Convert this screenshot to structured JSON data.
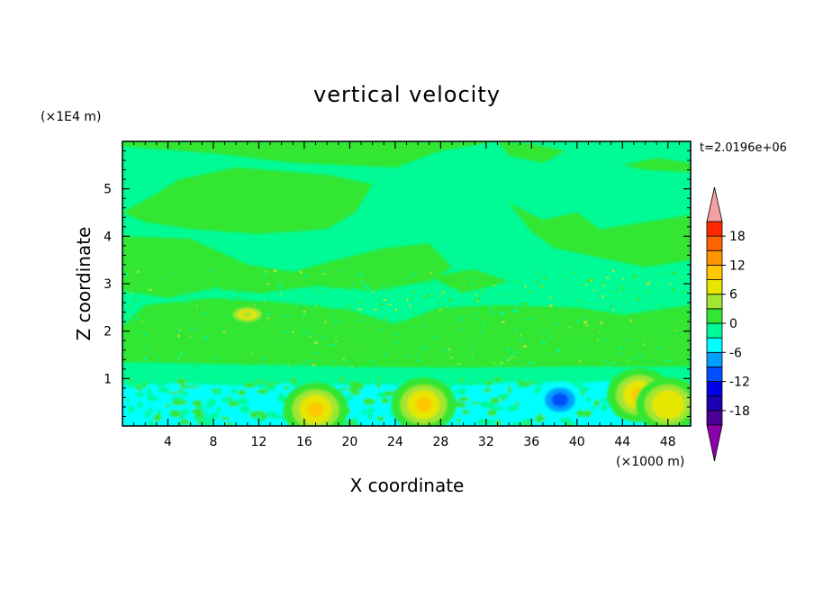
{
  "chart_data": {
    "type": "heatmap",
    "title": "vertical velocity",
    "xlabel": "X coordinate",
    "ylabel": "Z coordinate",
    "x_unit_label": "(×1000 m)",
    "y_unit_label": "(×1E4 m)",
    "time_label": "t=2.0196e+06",
    "xlim": [
      0,
      50
    ],
    "ylim": [
      0,
      6
    ],
    "x_ticks": [
      "4",
      "8",
      "12",
      "16",
      "20",
      "24",
      "28",
      "32",
      "36",
      "40",
      "44",
      "48"
    ],
    "y_ticks": [
      "1",
      "2",
      "3",
      "4",
      "5"
    ],
    "grid": false,
    "colorbar": {
      "min": -21,
      "max": 21,
      "step": 3,
      "ticks": [
        "18",
        "12",
        "6",
        "0",
        "-6",
        "-12",
        "-18"
      ],
      "extend": "both",
      "levels": [
        {
          "from": -21,
          "to": -18,
          "color": "#4b0096"
        },
        {
          "from": -18,
          "to": -15,
          "color": "#1e00b4"
        },
        {
          "from": -15,
          "to": -12,
          "color": "#0000e6"
        },
        {
          "from": -12,
          "to": -9,
          "color": "#0050ff"
        },
        {
          "from": -9,
          "to": -6,
          "color": "#00a0ff"
        },
        {
          "from": -6,
          "to": -3,
          "color": "#00ffff"
        },
        {
          "from": -3,
          "to": 0,
          "color": "#00fa96"
        },
        {
          "from": 0,
          "to": 3,
          "color": "#32e632"
        },
        {
          "from": 3,
          "to": 6,
          "color": "#a0e632"
        },
        {
          "from": 6,
          "to": 9,
          "color": "#e6e600"
        },
        {
          "from": 9,
          "to": 12,
          "color": "#ffc800"
        },
        {
          "from": 12,
          "to": 15,
          "color": "#ff9600"
        },
        {
          "from": 15,
          "to": 18,
          "color": "#ff6400"
        },
        {
          "from": 18,
          "to": 21,
          "color": "#ff2800"
        }
      ],
      "under_color": "#8c00aa",
      "over_color": "#f5a0a0"
    },
    "features": [
      {
        "kind": "updraft",
        "x": 17,
        "z": 0.35,
        "peak": 10
      },
      {
        "kind": "updraft",
        "x": 26.5,
        "z": 0.45,
        "peak": 10
      },
      {
        "kind": "updraft",
        "x": 45.5,
        "z": 0.65,
        "peak": 10
      },
      {
        "kind": "updraft",
        "x": 48,
        "z": 0.45,
        "peak": 8
      },
      {
        "kind": "downdraft",
        "x": 38.5,
        "z": 0.55,
        "peak": -10
      },
      {
        "kind": "updraft",
        "x": 11,
        "z": 2.35,
        "peak": 5
      }
    ]
  }
}
